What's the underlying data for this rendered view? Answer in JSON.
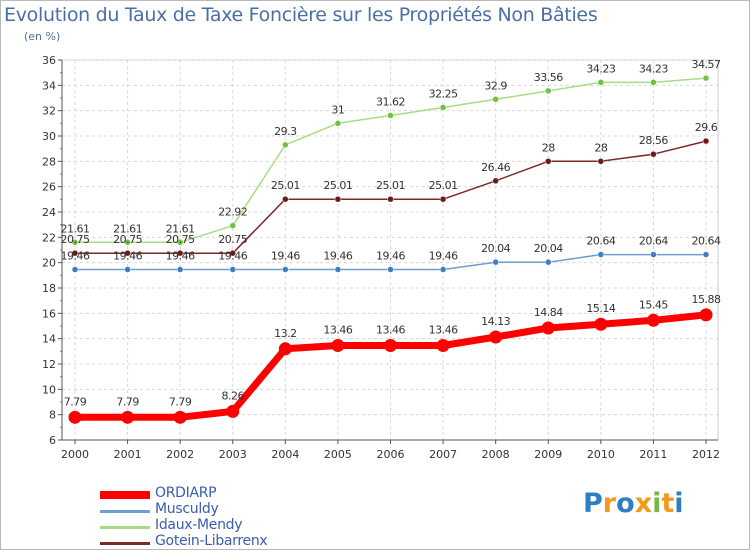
{
  "title": "Evolution du Taux de Taxe Foncière sur les Propriétés Non Bâties",
  "subtitle": "(en %)",
  "logo": {
    "letters": [
      "P",
      "r",
      "o",
      "x",
      "i",
      "t",
      "i"
    ]
  },
  "chart_data": {
    "type": "line",
    "title": "Evolution du Taux de Taxe Foncière sur les Propriétés Non Bâties",
    "ylabel": "(en %)",
    "xlabel": "",
    "ylim": [
      6,
      36
    ],
    "yticks": [
      6,
      8,
      10,
      12,
      14,
      16,
      18,
      20,
      22,
      24,
      26,
      28,
      30,
      32,
      34,
      36
    ],
    "categories": [
      "2000",
      "2001",
      "2002",
      "2003",
      "2004",
      "2005",
      "2006",
      "2007",
      "2008",
      "2009",
      "2010",
      "2011",
      "2012"
    ],
    "series": [
      {
        "name": "ORDIARP",
        "color": "#ff0000",
        "marker": "#ff0000",
        "values": [
          7.79,
          7.79,
          7.79,
          8.26,
          13.2,
          13.46,
          13.46,
          13.46,
          14.13,
          14.84,
          15.14,
          15.45,
          15.88
        ],
        "labels": [
          "7.79",
          "7.79",
          "7.79",
          "8.26",
          "13.2",
          "13.46",
          "13.46",
          "13.46",
          "14.13",
          "14.84",
          "15.14",
          "15.45",
          "15.88"
        ]
      },
      {
        "name": "Musculdy",
        "color": "#6f9fd0",
        "marker": "#3f7fc0",
        "values": [
          19.46,
          19.46,
          19.46,
          19.46,
          19.46,
          19.46,
          19.46,
          19.46,
          20.04,
          20.04,
          20.64,
          20.64,
          20.64
        ],
        "labels": [
          "19.46",
          "19.46",
          "19.46",
          "19.46",
          "19.46",
          "19.46",
          "19.46",
          "19.46",
          "20.04",
          "20.04",
          "20.64",
          "20.64",
          "20.64"
        ]
      },
      {
        "name": "Idaux-Mendy",
        "color": "#a8dc84",
        "marker": "#72c23e",
        "values": [
          21.61,
          21.61,
          21.61,
          22.92,
          29.3,
          31,
          31.62,
          32.25,
          32.9,
          33.56,
          34.23,
          34.23,
          34.57
        ],
        "labels": [
          "21.61",
          "21.61",
          "21.61",
          "22.92",
          "29.3",
          "31",
          "31.62",
          "32.25",
          "32.9",
          "33.56",
          "34.23",
          "34.23",
          "34.57"
        ]
      },
      {
        "name": "Gotein-Libarrenx",
        "color": "#7b2a2a",
        "marker": "#6a1c1c",
        "values": [
          20.75,
          20.75,
          20.75,
          20.75,
          25.01,
          25.01,
          25.01,
          25.01,
          26.46,
          28,
          28,
          28.56,
          29.6
        ],
        "labels": [
          "20.75",
          "20.75",
          "20.75",
          "20.75",
          "25.01",
          "25.01",
          "25.01",
          "25.01",
          "26.46",
          "28",
          "28",
          "28.56",
          "29.6"
        ]
      }
    ]
  }
}
